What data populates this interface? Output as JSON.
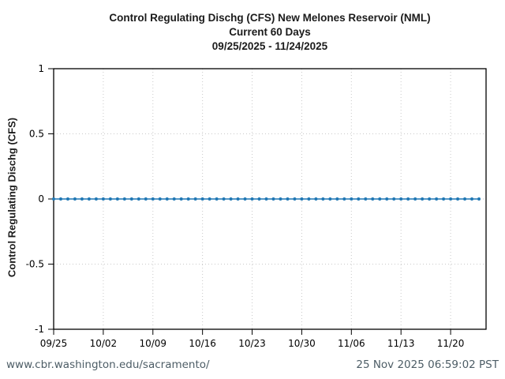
{
  "title": {
    "line1": "Control Regulating Dischg (CFS) New Melones Reservoir (NML)",
    "line2": "Current 60 Days",
    "line3": "09/25/2025 - 11/24/2025"
  },
  "footer": {
    "left": "www.cbr.washington.edu/sacramento/",
    "right": "25 Nov 2025 06:59:02 PST"
  },
  "colors": {
    "series_blue": "#1f77b4",
    "grid": "#c9c9c9",
    "axis": "#000000",
    "footer_text": "#4d5d66",
    "title_text": "#1b1b1b",
    "background": "#ffffff"
  },
  "chart_data": {
    "type": "line",
    "title": "Control Regulating Dischg (CFS) New Melones Reservoir (NML)",
    "subtitle": "Current 60 Days",
    "date_range": "09/25/2025 - 11/24/2025",
    "xlabel": "",
    "ylabel": "Control Regulating Dischg (CFS)",
    "ylim": [
      -1,
      1
    ],
    "yticks": [
      1,
      0.5,
      0,
      -0.5,
      -1
    ],
    "ytick_labels": [
      "1",
      "0.5",
      "0",
      "-0.5",
      "-1"
    ],
    "xtick_labels": [
      "09/25",
      "10/02",
      "10/09",
      "10/16",
      "10/23",
      "10/30",
      "11/06",
      "11/13",
      "11/20"
    ],
    "xtick_days": [
      0,
      7,
      14,
      21,
      28,
      35,
      42,
      49,
      56
    ],
    "x_start": "09/25/2025",
    "x_end": "11/24/2025",
    "x_span_days": 61,
    "grid": true,
    "legend_position": "none",
    "series": [
      {
        "name": "Control Regulating Dischg (CFS)",
        "color": "#1f77b4",
        "marker": "circle",
        "values": [
          0,
          0,
          0,
          0,
          0,
          0,
          0,
          0,
          0,
          0,
          0,
          0,
          0,
          0,
          0,
          0,
          0,
          0,
          0,
          0,
          0,
          0,
          0,
          0,
          0,
          0,
          0,
          0,
          0,
          0,
          0,
          0,
          0,
          0,
          0,
          0,
          0,
          0,
          0,
          0,
          0,
          0,
          0,
          0,
          0,
          0,
          0,
          0,
          0,
          0,
          0,
          0,
          0,
          0,
          0,
          0,
          0,
          0,
          0,
          0,
          0
        ]
      }
    ]
  }
}
